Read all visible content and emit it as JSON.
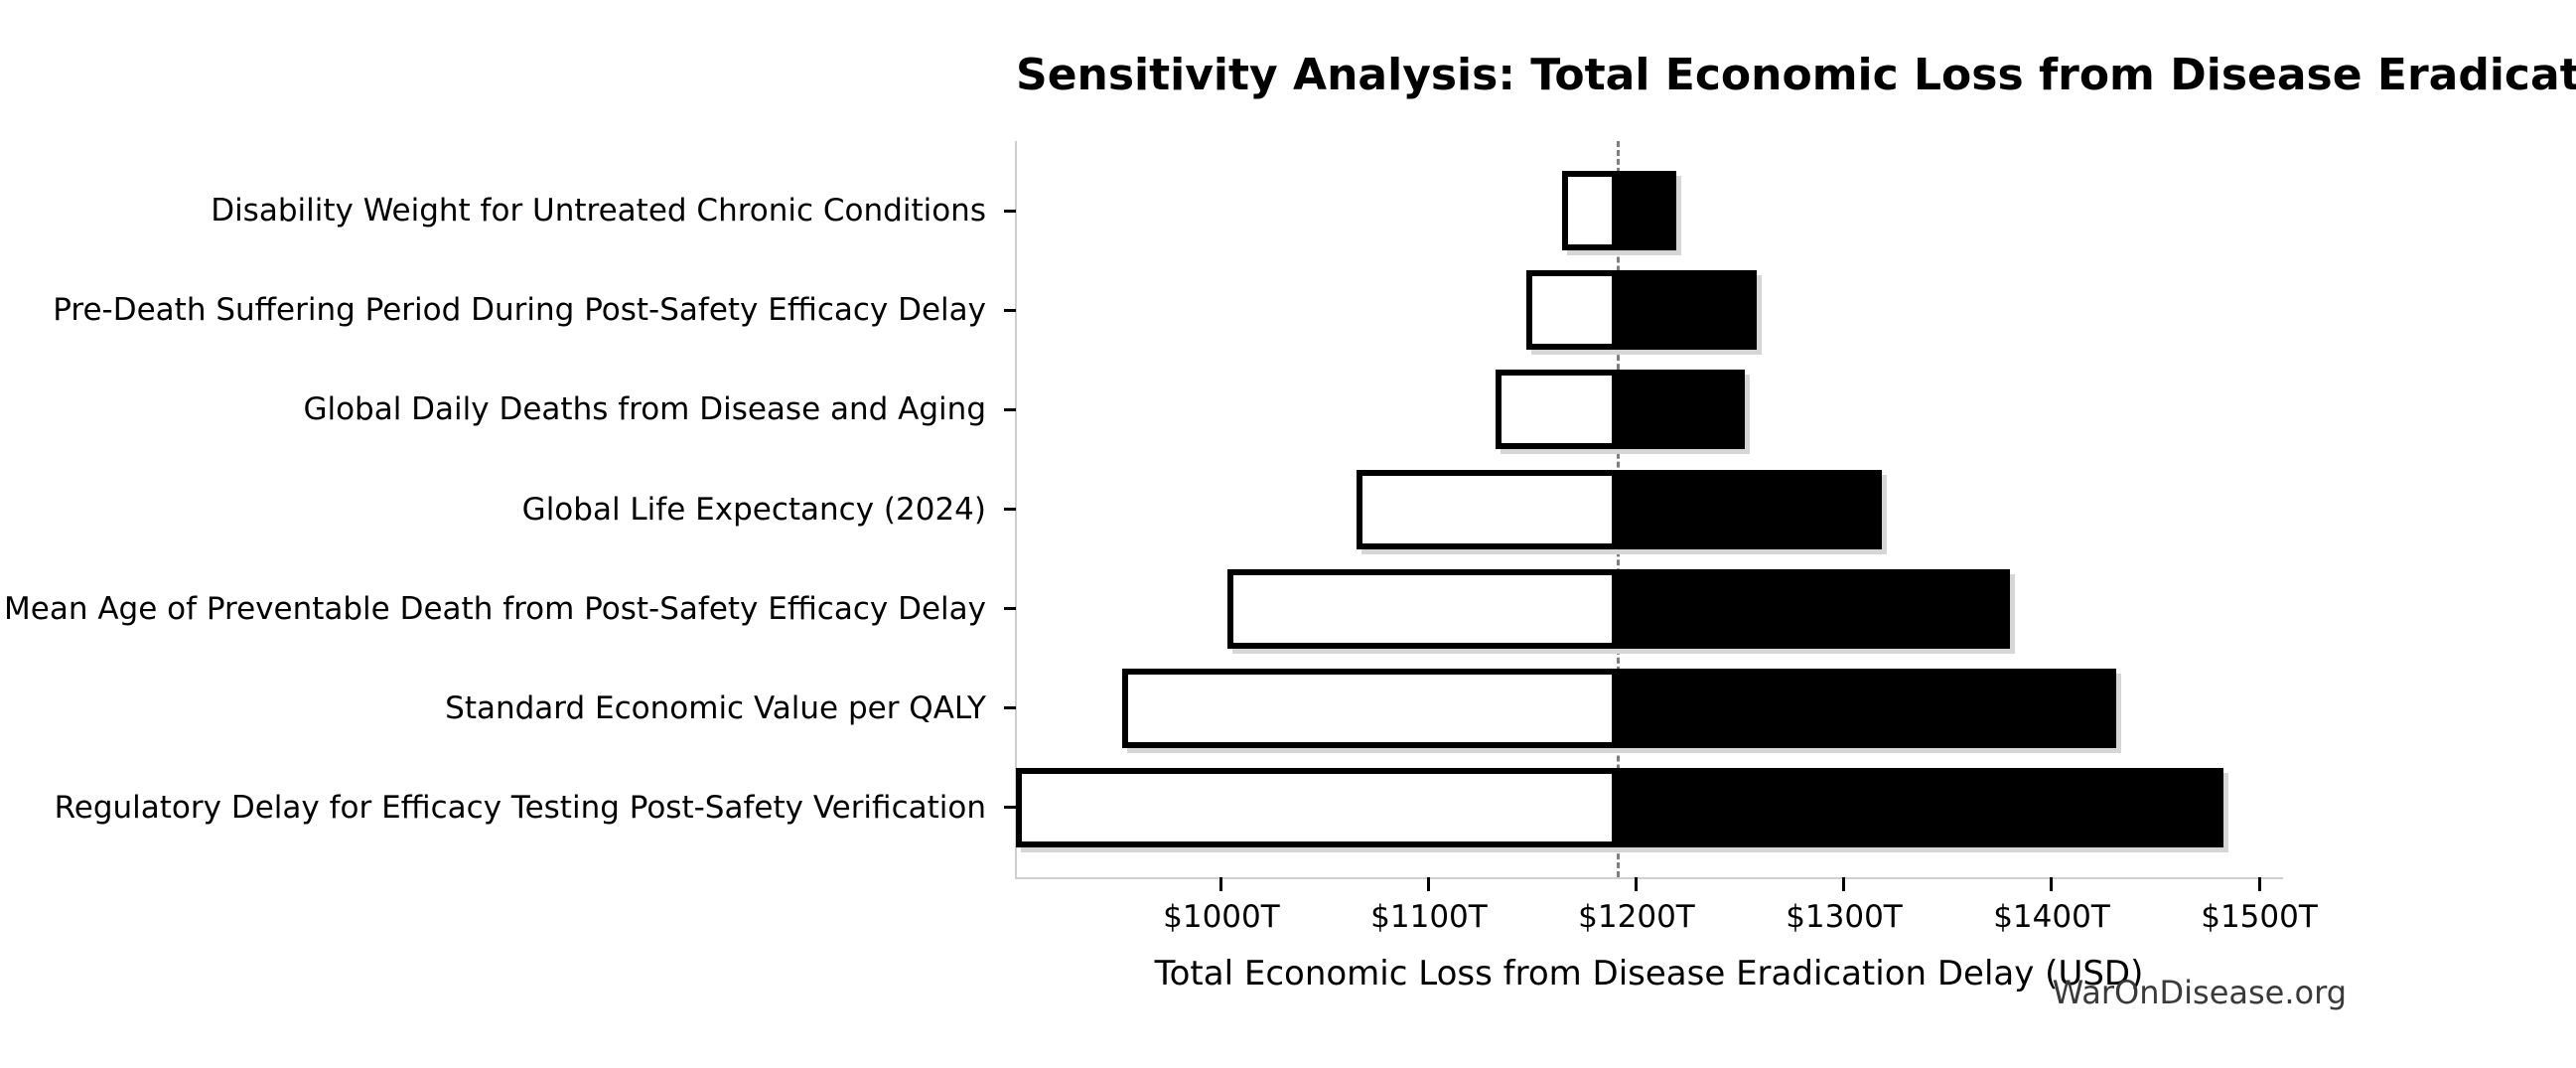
{
  "title": "Sensitivity Analysis: Total Economic Loss from Disease Eradication Delay",
  "watermark": "WarOnDisease.org",
  "chart_data": {
    "type": "bar",
    "subtype": "tornado-sensitivity",
    "orientation": "horizontal",
    "title": "Sensitivity Analysis: Total Economic Loss from Disease Eradication Delay",
    "xlabel": "Total Economic Loss from Disease Eradication Delay (USD)",
    "unit": "trillion USD",
    "baseline_value": 1191,
    "xlim": [
      901,
      1511
    ],
    "x_ticks": [
      1000,
      1100,
      1200,
      1300,
      1400,
      1500
    ],
    "x_tick_labels": [
      "$1000T",
      "$1100T",
      "$1200T",
      "$1300T",
      "$1400T",
      "$1500T"
    ],
    "grid": false,
    "legend": null,
    "rows": [
      {
        "label": "Disability Weight for Untreated Chronic Conditions",
        "low": 1164,
        "high": 1219
      },
      {
        "label": "Pre-Death Suffering Period During Post-Safety Efficacy Delay",
        "low": 1147,
        "high": 1258
      },
      {
        "label": "Global Daily Deaths from Disease and Aging",
        "low": 1132,
        "high": 1252
      },
      {
        "label": "Global Life Expectancy (2024)",
        "low": 1065,
        "high": 1318
      },
      {
        "label": "Mean Age of Preventable Death from Post-Safety Efficacy Delay",
        "low": 1003,
        "high": 1380
      },
      {
        "label": "Standard Economic Value per QALY",
        "low": 952,
        "high": 1431
      },
      {
        "label": "Regulatory Delay for Efficacy Testing Post-Safety Verification",
        "low": 901,
        "high": 1483
      }
    ],
    "colors": {
      "low_fill": "#ffffff",
      "high_fill": "#000000",
      "bar_edge": "#000000",
      "baseline_line": "#7f7f7f",
      "spine": "#cfcfcf",
      "shadow": "#d6d6d6",
      "text": "#000000",
      "watermark_text": "#3a3a3a"
    }
  }
}
